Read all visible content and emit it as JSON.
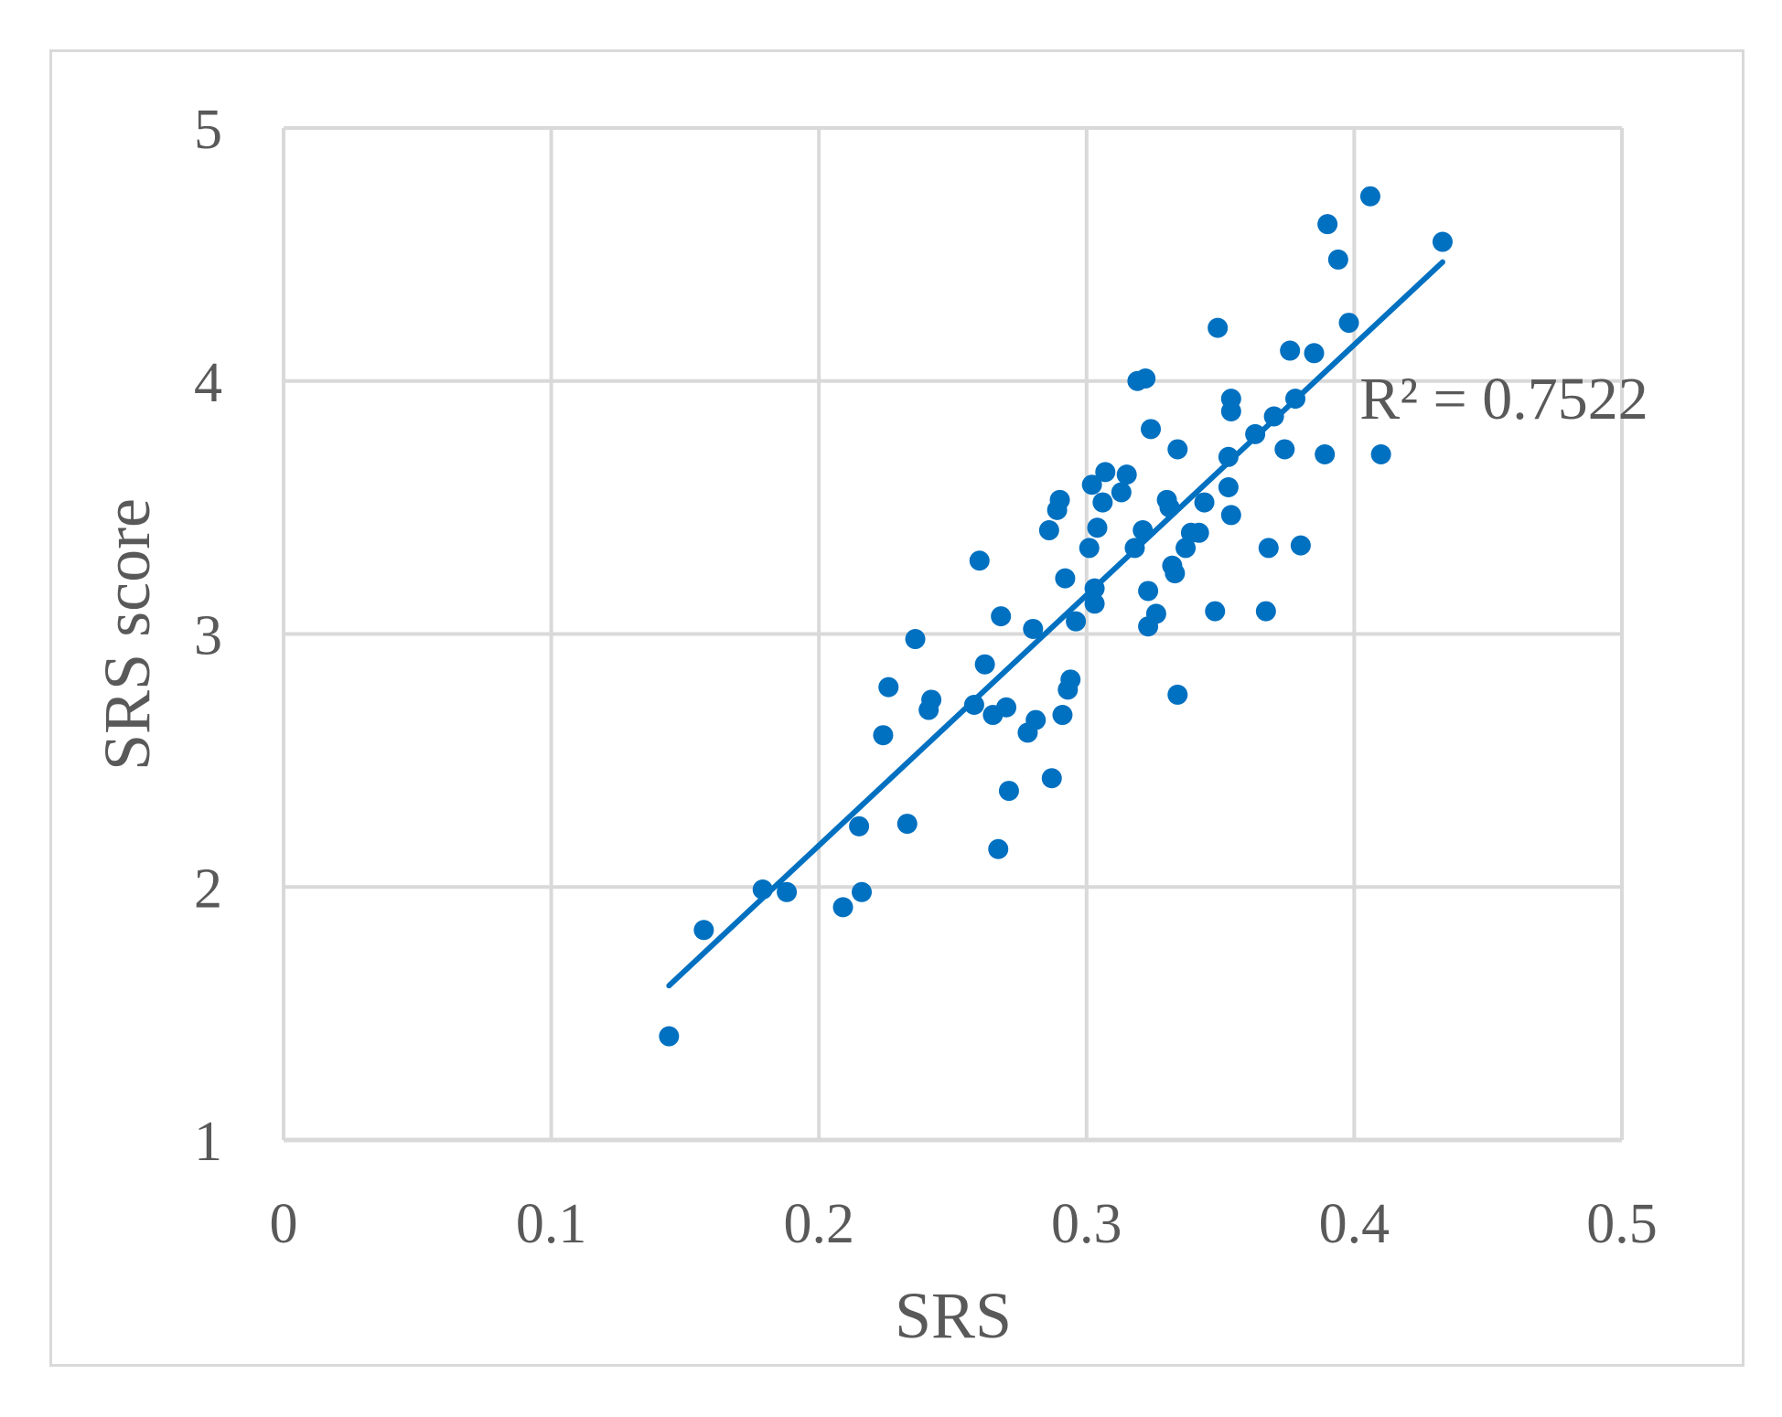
{
  "chart_data": {
    "type": "scatter",
    "title": "",
    "xlabel": "SRS",
    "ylabel": "SRS score",
    "xlim": [
      0,
      0.5
    ],
    "ylim": [
      1,
      5
    ],
    "xticks": [
      0,
      0.1,
      0.2,
      0.3,
      0.4,
      0.5
    ],
    "yticks": [
      1,
      2,
      3,
      4,
      5
    ],
    "xtick_labels": [
      "0",
      "0.1",
      "0.2",
      "0.3",
      "0.4",
      "0.5"
    ],
    "ytick_labels": [
      "1",
      "2",
      "3",
      "4",
      "5"
    ],
    "grid": true,
    "legend": "none",
    "marker_color": "#0070c0",
    "grid_color": "#d9d9d9",
    "text_color": "#595959",
    "series": [
      {
        "type": "scatter",
        "points": [
          [
            0.144,
            1.41
          ],
          [
            0.157,
            1.83
          ],
          [
            0.179,
            1.99
          ],
          [
            0.188,
            1.98
          ],
          [
            0.209,
            1.92
          ],
          [
            0.215,
            2.24
          ],
          [
            0.216,
            1.98
          ],
          [
            0.224,
            2.6
          ],
          [
            0.226,
            2.79
          ],
          [
            0.233,
            2.25
          ],
          [
            0.236,
            2.98
          ],
          [
            0.241,
            2.7
          ],
          [
            0.242,
            2.74
          ],
          [
            0.258,
            2.72
          ],
          [
            0.26,
            3.29
          ],
          [
            0.262,
            2.88
          ],
          [
            0.265,
            2.68
          ],
          [
            0.267,
            2.15
          ],
          [
            0.268,
            3.07
          ],
          [
            0.27,
            2.71
          ],
          [
            0.271,
            2.38
          ],
          [
            0.278,
            2.61
          ],
          [
            0.28,
            3.02
          ],
          [
            0.281,
            2.66
          ],
          [
            0.286,
            3.41
          ],
          [
            0.287,
            2.43
          ],
          [
            0.289,
            3.49
          ],
          [
            0.29,
            3.53
          ],
          [
            0.291,
            2.68
          ],
          [
            0.292,
            3.22
          ],
          [
            0.293,
            2.78
          ],
          [
            0.294,
            2.82
          ],
          [
            0.296,
            3.05
          ],
          [
            0.301,
            3.34
          ],
          [
            0.302,
            3.59
          ],
          [
            0.303,
            3.12
          ],
          [
            0.303,
            3.18
          ],
          [
            0.304,
            3.42
          ],
          [
            0.306,
            3.52
          ],
          [
            0.307,
            3.64
          ],
          [
            0.313,
            3.56
          ],
          [
            0.315,
            3.63
          ],
          [
            0.318,
            3.34
          ],
          [
            0.319,
            4.0
          ],
          [
            0.321,
            3.41
          ],
          [
            0.322,
            4.01
          ],
          [
            0.323,
            3.03
          ],
          [
            0.323,
            3.17
          ],
          [
            0.324,
            3.81
          ],
          [
            0.326,
            3.08
          ],
          [
            0.33,
            3.53
          ],
          [
            0.331,
            3.5
          ],
          [
            0.332,
            3.27
          ],
          [
            0.333,
            3.24
          ],
          [
            0.334,
            3.73
          ],
          [
            0.334,
            2.76
          ],
          [
            0.337,
            3.34
          ],
          [
            0.339,
            3.4
          ],
          [
            0.342,
            3.4
          ],
          [
            0.344,
            3.52
          ],
          [
            0.348,
            3.09
          ],
          [
            0.349,
            4.21
          ],
          [
            0.353,
            3.7
          ],
          [
            0.353,
            3.58
          ],
          [
            0.354,
            3.93
          ],
          [
            0.354,
            3.88
          ],
          [
            0.354,
            3.47
          ],
          [
            0.363,
            3.79
          ],
          [
            0.367,
            3.09
          ],
          [
            0.368,
            3.34
          ],
          [
            0.37,
            3.86
          ],
          [
            0.374,
            3.73
          ],
          [
            0.376,
            4.12
          ],
          [
            0.378,
            3.93
          ],
          [
            0.38,
            3.35
          ],
          [
            0.385,
            4.11
          ],
          [
            0.389,
            3.71
          ],
          [
            0.39,
            4.62
          ],
          [
            0.394,
            4.48
          ],
          [
            0.398,
            4.23
          ],
          [
            0.406,
            4.73
          ],
          [
            0.41,
            3.71
          ],
          [
            0.433,
            4.55
          ]
        ]
      },
      {
        "type": "line",
        "name": "Linear trendline",
        "points": [
          [
            0.144,
            1.61
          ],
          [
            0.433,
            4.47
          ]
        ]
      }
    ],
    "annotations": [
      {
        "text": "R² = 0.7522",
        "x": 0.402,
        "y": 3.93
      }
    ]
  }
}
